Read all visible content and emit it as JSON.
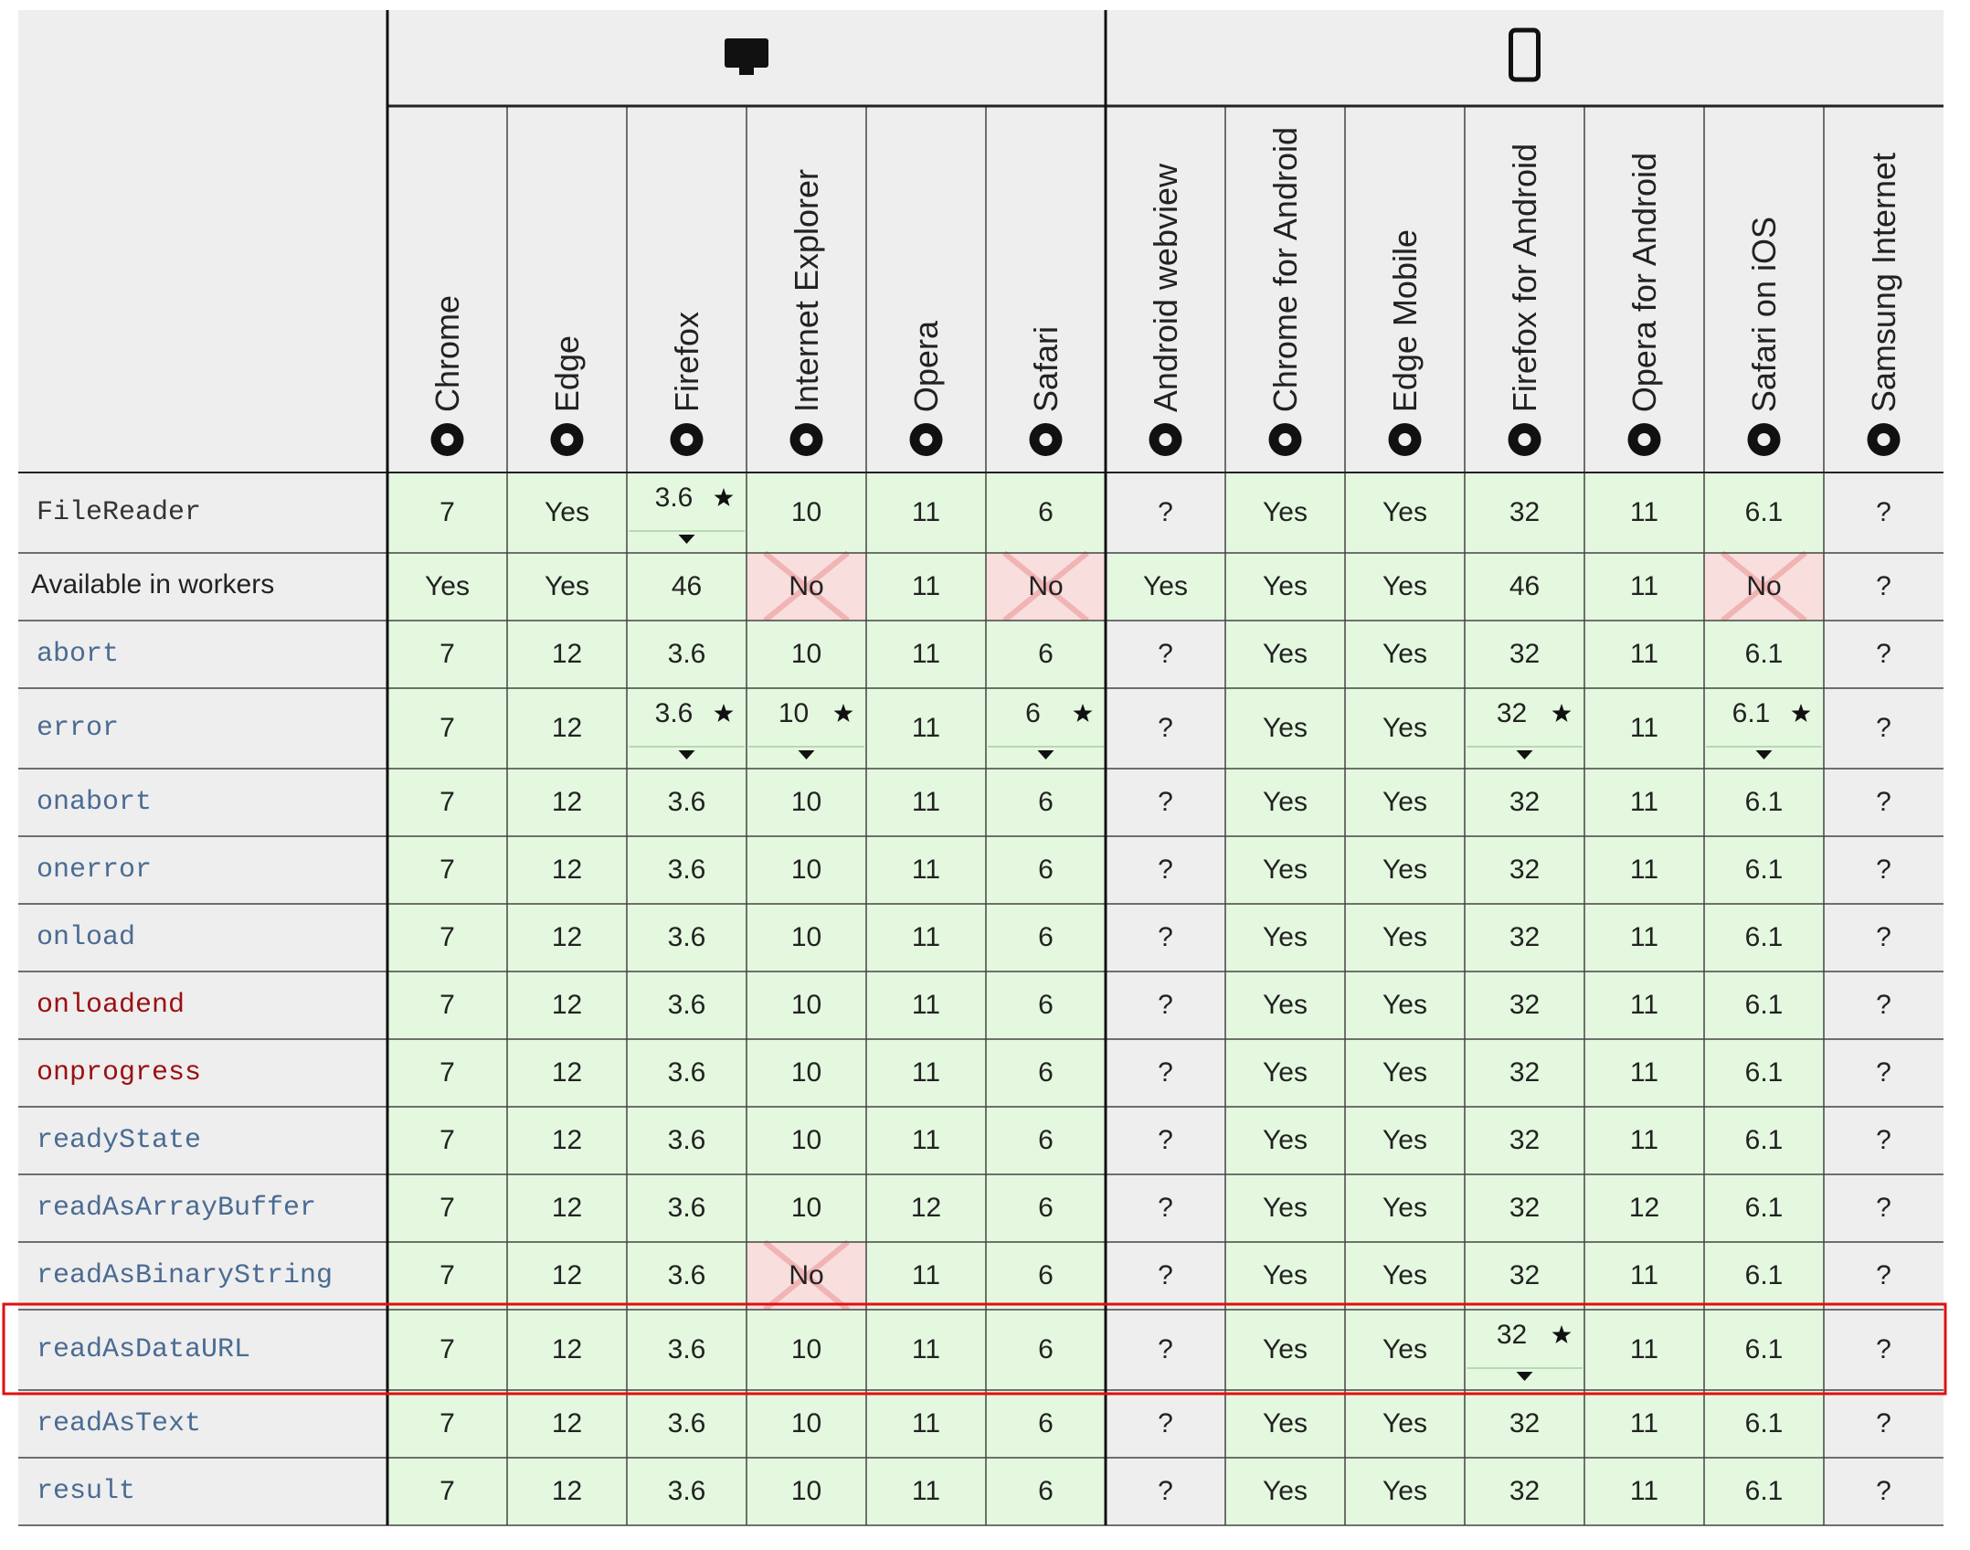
{
  "table": {
    "columns": [
      "Chrome",
      "Edge",
      "Firefox",
      "Internet Explorer",
      "Opera",
      "Safari",
      "Android webview",
      "Chrome for Android",
      "Edge Mobile",
      "Firefox for Android",
      "Opera for Android",
      "Safari on iOS",
      "Samsung Internet"
    ],
    "desktop_columns": 6,
    "rows": [
      {
        "feature": "FileReader",
        "format": "code",
        "color": "#333333",
        "cells": [
          "7",
          "Yes",
          {
            "text": "3.6",
            "note": true
          },
          "10",
          "11",
          "6",
          "?",
          "Yes",
          "Yes",
          "32",
          "11",
          "6.1",
          "?"
        ]
      },
      {
        "feature": "Available in workers",
        "format": "text",
        "color": "#222222",
        "cells": [
          "Yes",
          "Yes",
          "46",
          "No",
          "11",
          "No",
          "Yes",
          "Yes",
          "Yes",
          "46",
          "11",
          "No",
          "?"
        ]
      },
      {
        "feature": "abort",
        "format": "code",
        "color": "#4a6b93",
        "cells": [
          "7",
          "12",
          "3.6",
          "10",
          "11",
          "6",
          "?",
          "Yes",
          "Yes",
          "32",
          "11",
          "6.1",
          "?"
        ]
      },
      {
        "feature": "error",
        "format": "code",
        "color": "#4a6b93",
        "cells": [
          "7",
          "12",
          {
            "text": "3.6",
            "note": true
          },
          {
            "text": "10",
            "note": true
          },
          "11",
          {
            "text": "6",
            "note": true
          },
          "?",
          "Yes",
          "Yes",
          {
            "text": "32",
            "note": true
          },
          "11",
          {
            "text": "6.1",
            "note": true
          },
          "?"
        ]
      },
      {
        "feature": "onabort",
        "format": "code",
        "color": "#4a6b93",
        "cells": [
          "7",
          "12",
          "3.6",
          "10",
          "11",
          "6",
          "?",
          "Yes",
          "Yes",
          "32",
          "11",
          "6.1",
          "?"
        ]
      },
      {
        "feature": "onerror",
        "format": "code",
        "color": "#4a6b93",
        "cells": [
          "7",
          "12",
          "3.6",
          "10",
          "11",
          "6",
          "?",
          "Yes",
          "Yes",
          "32",
          "11",
          "6.1",
          "?"
        ]
      },
      {
        "feature": "onload",
        "format": "code",
        "color": "#4a6b93",
        "cells": [
          "7",
          "12",
          "3.6",
          "10",
          "11",
          "6",
          "?",
          "Yes",
          "Yes",
          "32",
          "11",
          "6.1",
          "?"
        ]
      },
      {
        "feature": "onloadend",
        "format": "code",
        "color": "#9b1010",
        "cells": [
          "7",
          "12",
          "3.6",
          "10",
          "11",
          "6",
          "?",
          "Yes",
          "Yes",
          "32",
          "11",
          "6.1",
          "?"
        ]
      },
      {
        "feature": "onprogress",
        "format": "code",
        "color": "#9b1010",
        "cells": [
          "7",
          "12",
          "3.6",
          "10",
          "11",
          "6",
          "?",
          "Yes",
          "Yes",
          "32",
          "11",
          "6.1",
          "?"
        ]
      },
      {
        "feature": "readyState",
        "format": "code",
        "color": "#4a6b93",
        "cells": [
          "7",
          "12",
          "3.6",
          "10",
          "11",
          "6",
          "?",
          "Yes",
          "Yes",
          "32",
          "11",
          "6.1",
          "?"
        ]
      },
      {
        "feature": "readAsArrayBuffer",
        "format": "code",
        "color": "#4a6b93",
        "cells": [
          "7",
          "12",
          "3.6",
          "10",
          "12",
          "6",
          "?",
          "Yes",
          "Yes",
          "32",
          "12",
          "6.1",
          "?"
        ]
      },
      {
        "feature": "readAsBinaryString",
        "format": "code",
        "color": "#4a6b93",
        "cells": [
          "7",
          "12",
          "3.6",
          "No",
          "11",
          "6",
          "?",
          "Yes",
          "Yes",
          "32",
          "11",
          "6.1",
          "?"
        ]
      },
      {
        "feature": "readAsDataURL",
        "format": "code",
        "color": "#4a6b93",
        "highlight": true,
        "cells": [
          "7",
          "12",
          "3.6",
          "10",
          "11",
          "6",
          "?",
          "Yes",
          "Yes",
          {
            "text": "32",
            "note": true
          },
          "11",
          "6.1",
          "?"
        ]
      },
      {
        "feature": "readAsText",
        "format": "code",
        "color": "#4a6b93",
        "cells": [
          "7",
          "12",
          "3.6",
          "10",
          "11",
          "6",
          "?",
          "Yes",
          "Yes",
          "32",
          "11",
          "6.1",
          "?"
        ]
      },
      {
        "feature": "result",
        "format": "code",
        "color": "#4a6b93",
        "cells": [
          "7",
          "12",
          "3.6",
          "10",
          "11",
          "6",
          "?",
          "Yes",
          "Yes",
          "32",
          "11",
          "6.1",
          "?"
        ]
      }
    ]
  }
}
